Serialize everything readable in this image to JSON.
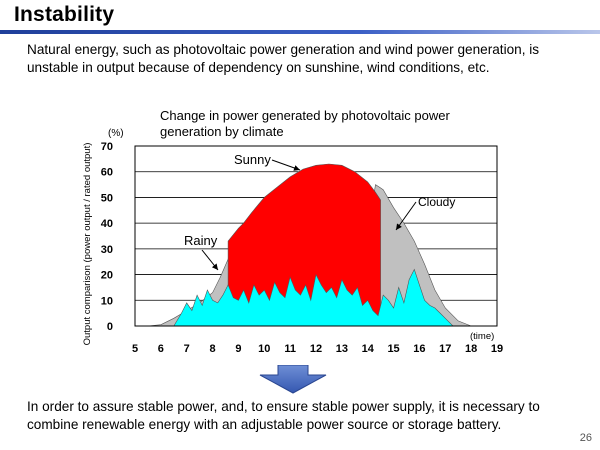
{
  "slide": {
    "title": "Instability",
    "intro": "Natural energy, such as photovoltaic power generation and wind power generation, is unstable in output because of dependency on sunshine, wind conditions, etc.",
    "conclusion": "In order to assure stable power, and, to ensure stable power supply, it is necessary to combine renewable energy with an adjustable power source or storage battery.",
    "page_number": "26"
  },
  "chart_data": {
    "type": "area",
    "title": "Change in power generated by photovoltaic power generation by climate",
    "ylabel": "Output comparison (power output / rated output)",
    "yunit": "(%)",
    "xunit": "(time)",
    "ylim": [
      0,
      70
    ],
    "xlim": [
      5,
      19
    ],
    "yticks": [
      0,
      10,
      20,
      30,
      40,
      50,
      60,
      70
    ],
    "xticks": [
      5,
      6,
      7,
      8,
      9,
      10,
      11,
      12,
      13,
      14,
      15,
      16,
      17,
      18,
      19
    ],
    "grid": true,
    "colors": {
      "sunny": "#ff0000",
      "cloudy": "#c0c0c0",
      "rainy": "#00ffff"
    },
    "series": [
      {
        "name": "Sunny",
        "x": [
          8.6,
          9.0,
          9.2,
          9.5,
          10.0,
          10.5,
          11.0,
          11.5,
          12.0,
          12.5,
          13.0,
          13.5,
          14.0,
          14.3,
          14.5
        ],
        "y": [
          33,
          38,
          40,
          44,
          50,
          54,
          58,
          61,
          62.5,
          63,
          62.5,
          60,
          56,
          52,
          49
        ]
      },
      {
        "name": "Cloudy",
        "x": [
          5.5,
          6.0,
          6.5,
          7.0,
          7.5,
          8.0,
          8.3,
          8.6,
          8.8,
          9.0,
          9.2,
          9.4,
          9.6,
          9.8,
          10.0,
          10.2,
          10.4,
          10.6,
          10.8,
          11.0,
          11.2,
          11.4,
          11.6,
          11.8,
          12.0,
          12.2,
          12.4,
          12.6,
          12.8,
          13.0,
          13.2,
          13.4,
          13.6,
          13.8,
          14.0,
          14.3,
          14.6,
          15.0,
          15.4,
          15.8,
          16.2,
          16.6,
          17.0,
          17.5,
          18.0
        ],
        "y": [
          0,
          0.5,
          3,
          6,
          9,
          13,
          19,
          26,
          33,
          35,
          27,
          38,
          30,
          40,
          25,
          42,
          35,
          31,
          45,
          38,
          32,
          48,
          40,
          34,
          52,
          46,
          44,
          52,
          50,
          43,
          39,
          54,
          37,
          28,
          36,
          55,
          53,
          46,
          40,
          33,
          24,
          14,
          7,
          2,
          0
        ]
      },
      {
        "name": "Rainy",
        "x": [
          6.5,
          6.8,
          7.0,
          7.2,
          7.4,
          7.6,
          7.8,
          8.0,
          8.2,
          8.4,
          8.6,
          8.8,
          9.0,
          9.2,
          9.4,
          9.6,
          9.8,
          10.0,
          10.2,
          10.4,
          10.6,
          10.8,
          11.0,
          11.2,
          11.4,
          11.6,
          11.8,
          12.0,
          12.2,
          12.4,
          12.6,
          12.8,
          13.0,
          13.2,
          13.4,
          13.6,
          13.8,
          14.0,
          14.2,
          14.4,
          14.6,
          14.8,
          15.0,
          15.2,
          15.4,
          15.6,
          15.8,
          16.0,
          16.2,
          16.4,
          16.6,
          16.8,
          17.0,
          17.3
        ],
        "y": [
          0,
          5,
          9,
          6,
          12,
          8,
          14,
          10,
          9,
          12,
          16,
          11,
          10,
          14,
          9,
          16,
          12,
          14,
          10,
          17,
          13,
          11,
          19,
          14,
          12,
          16,
          10,
          20,
          16,
          13,
          15,
          11,
          18,
          14,
          12,
          15,
          8,
          10,
          6,
          4,
          12,
          10,
          7,
          15,
          9,
          18,
          22,
          16,
          10,
          8,
          7,
          5,
          3,
          0
        ]
      }
    ]
  }
}
